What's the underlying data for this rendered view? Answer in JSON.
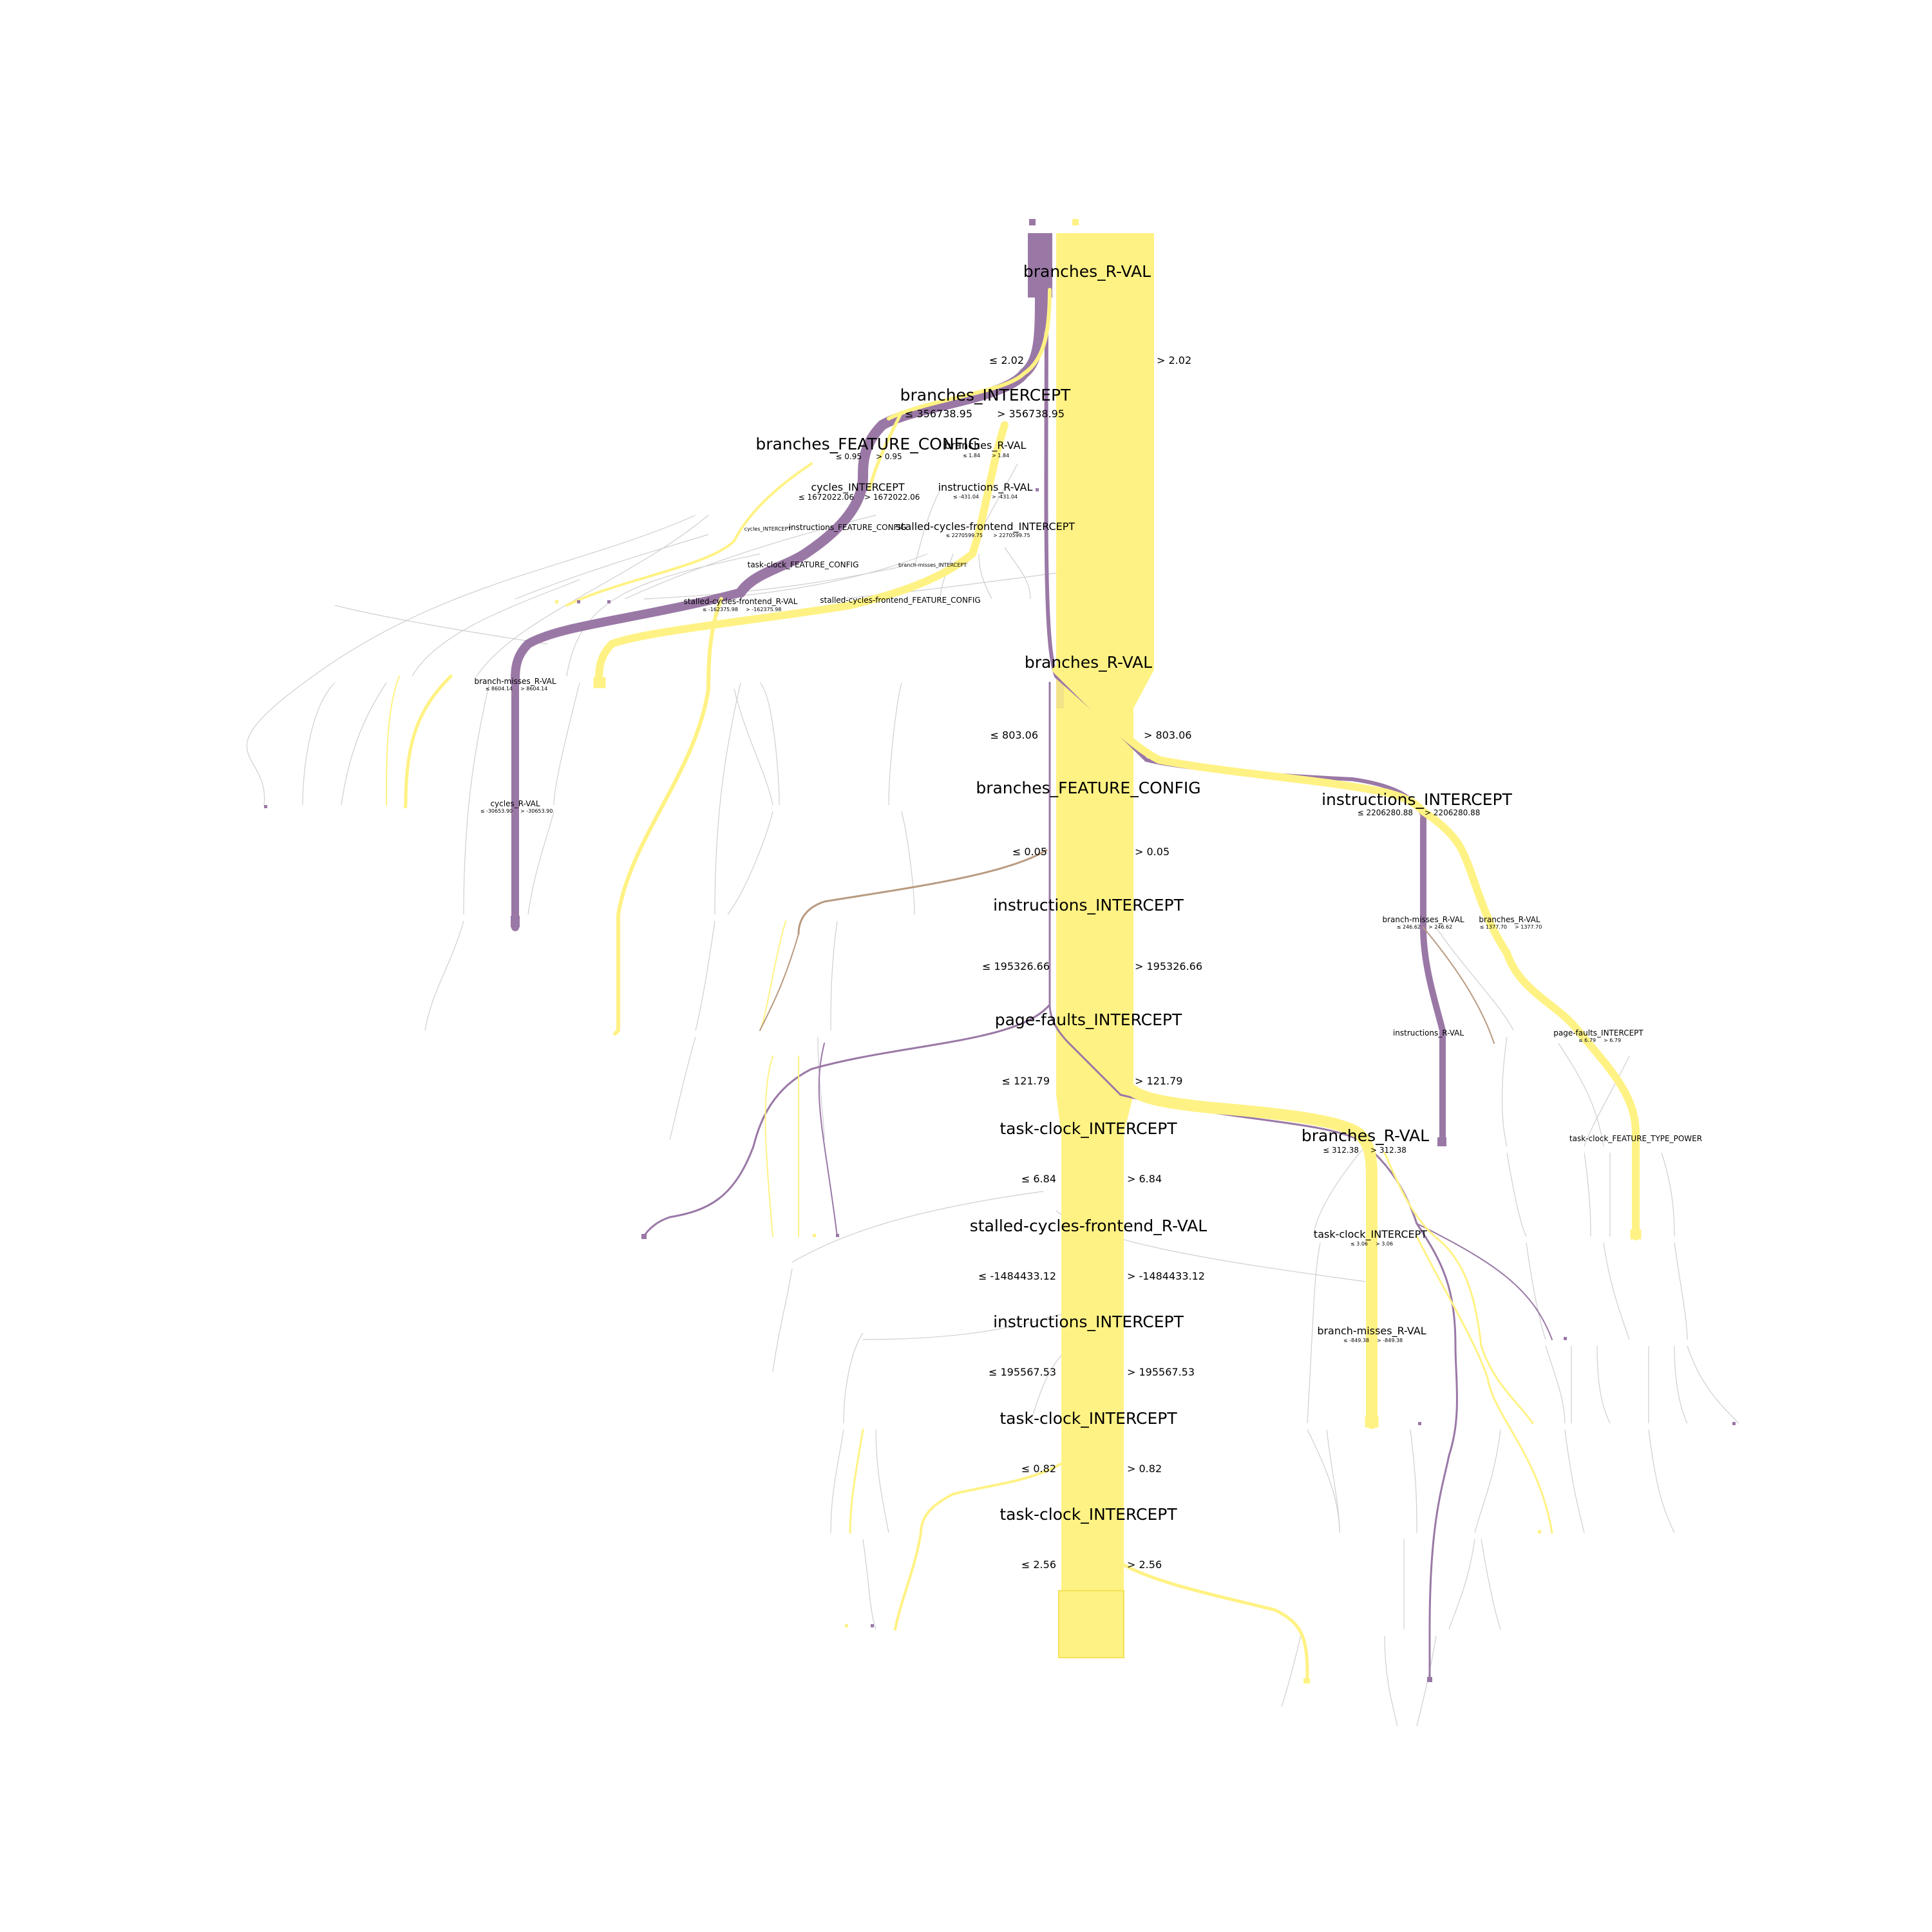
{
  "colors": {
    "class_a": "#9a78a6",
    "class_b": "#fff284",
    "mix": "#b89a80",
    "grey": "#bcbcbc"
  },
  "legend": {
    "class_a_label": "",
    "class_b_label": ""
  },
  "main_spine": {
    "root": {
      "label": "branches_R-VAL",
      "left": "≤ 2.02",
      "right": "> 2.02"
    },
    "nodes": [
      {
        "label": "branches_R-VAL",
        "left": "≤ 803.06",
        "right": "> 803.06"
      },
      {
        "label": "branches_FEATURE_CONFIG",
        "left": "≤ 0.05",
        "right": "> 0.05"
      },
      {
        "label": "instructions_INTERCEPT",
        "left": "≤ 195326.66",
        "right": "> 195326.66"
      },
      {
        "label": "page-faults_INTERCEPT",
        "left": "≤ 121.79",
        "right": "> 121.79"
      },
      {
        "label": "task-clock_INTERCEPT",
        "left": "≤ 6.84",
        "right": "> 6.84"
      },
      {
        "label": "stalled-cycles-frontend_R-VAL",
        "left": "≤ -1484433.12",
        "right": "> -1484433.12"
      },
      {
        "label": "instructions_INTERCEPT",
        "left": "≤ 195567.53",
        "right": "> 195567.53"
      },
      {
        "label": "task-clock_INTERCEPT",
        "left": "≤ 0.82",
        "right": "> 0.82"
      },
      {
        "label": "task-clock_INTERCEPT",
        "left": "≤ 2.56",
        "right": "> 2.56"
      }
    ]
  },
  "left_branch": {
    "n1": {
      "label": "branches_INTERCEPT",
      "left": "≤ 356738.95",
      "right": "> 356738.95"
    },
    "n2": {
      "label": "branches_FEATURE_CONFIG",
      "left": "≤ 0.95",
      "right": "> 0.95"
    },
    "n3": {
      "label": "branches_R-VAL",
      "left": "≤ 1.84",
      "right": "> 1.84"
    },
    "n4": {
      "label": "cycles_INTERCEPT",
      "left": "≤ 1672022.06",
      "right": "> 1672022.06"
    },
    "n5": {
      "label": "instructions_R-VAL",
      "left": "≤ -431.04",
      "right": "> -431.04"
    },
    "n6": {
      "label": "cycles_INTERCEPT"
    },
    "n7": {
      "label": "instructions_FEATURE_CONFIG"
    },
    "n8": {
      "label": "stalled-cycles-frontend_INTERCEPT",
      "left": "≤ 2270599.75",
      "right": "> 2270599.75"
    },
    "n9": {
      "label": "task-clock_FEATURE_CONFIG"
    },
    "n10": {
      "label": "branch-misses_INTERCEPT"
    },
    "n11": {
      "label": "stalled-cycles-frontend_R-VAL",
      "left": "≤ -162375.98",
      "right": "> -162375.98"
    },
    "n12": {
      "label": "stalled-cycles-frontend_FEATURE_CONFIG"
    },
    "n13": {
      "label": "branch-misses_R-VAL",
      "left": "≤ 8604.14",
      "right": "> 8604.14"
    },
    "n14": {
      "label": "cycles_R-VAL",
      "left": "≤ -30653.90",
      "right": "> -30653.90"
    }
  },
  "right_branch": {
    "n1": {
      "label": "instructions_INTERCEPT",
      "left": "≤ 2206280.88",
      "right": "> 2206280.88"
    },
    "n2": {
      "label": "branch-misses_R-VAL",
      "left": "≤ 246.62",
      "right": "> 246.62"
    },
    "n3": {
      "label": "branches_R-VAL",
      "left": "≤ 1377.70",
      "right": "> 1377.70"
    },
    "n4": {
      "label": "instructions_R-VAL"
    },
    "n5": {
      "label": "page-faults_INTERCEPT",
      "left": "≤ 6.79",
      "right": "> 6.79"
    },
    "n6": {
      "label": "branches_R-VAL",
      "left": "≤ 312.38",
      "right": "> 312.38"
    },
    "n7": {
      "label": "task-clock_FEATURE_TYPE_POWER"
    },
    "n8": {
      "label": "task-clock_INTERCEPT",
      "left": "≤ 3.06",
      "right": "> 3.06"
    },
    "n9": {
      "label": "branch-misses_R-VAL",
      "left": "≤ -849.38",
      "right": "> -849.38"
    }
  }
}
